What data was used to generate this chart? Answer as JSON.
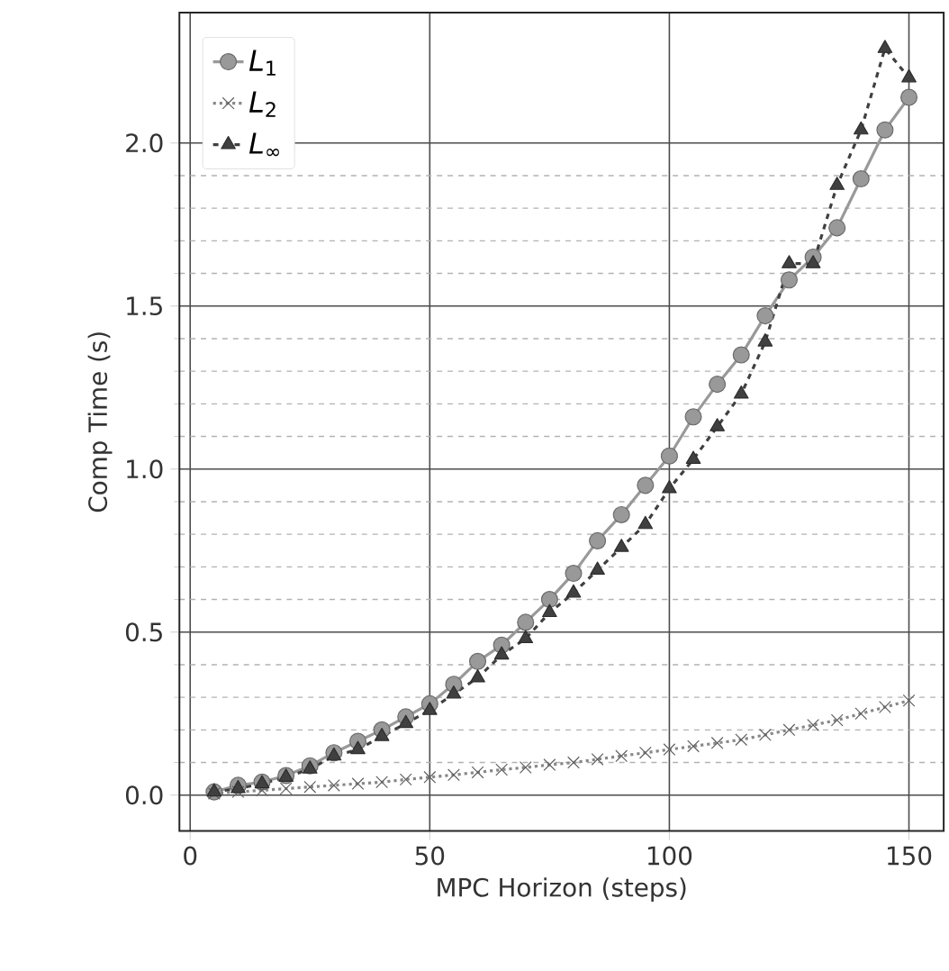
{
  "chart_data": {
    "type": "line",
    "xlabel": "MPC Horizon (steps)",
    "ylabel": "Comp Time (s)",
    "x": [
      5,
      10,
      15,
      20,
      25,
      30,
      35,
      40,
      45,
      50,
      55,
      60,
      65,
      70,
      75,
      80,
      85,
      90,
      95,
      100,
      105,
      110,
      115,
      120,
      125,
      130,
      135,
      140,
      145,
      150
    ],
    "series": [
      {
        "name": "*L*$_{1}$",
        "color": "#999999",
        "marker": "circle",
        "line_style": "solid",
        "values": [
          0.01,
          0.03,
          0.04,
          0.06,
          0.09,
          0.13,
          0.165,
          0.2,
          0.24,
          0.28,
          0.34,
          0.41,
          0.46,
          0.53,
          0.6,
          0.68,
          0.78,
          0.86,
          0.95,
          1.04,
          1.16,
          1.26,
          1.35,
          1.47,
          1.58,
          1.65,
          1.74,
          1.89,
          2.04,
          2.14
        ]
      },
      {
        "name": "*L*$_{2}$",
        "color": "#888888",
        "marker": "cross",
        "line_style": "dotted",
        "values": [
          0.005,
          0.01,
          0.015,
          0.02,
          0.025,
          0.03,
          0.035,
          0.04,
          0.048,
          0.055,
          0.062,
          0.07,
          0.078,
          0.085,
          0.093,
          0.1,
          0.11,
          0.12,
          0.13,
          0.14,
          0.15,
          0.16,
          0.17,
          0.185,
          0.2,
          0.215,
          0.23,
          0.25,
          0.27,
          0.29
        ]
      },
      {
        "name": "*L*$_{∞}$",
        "color": "#404040",
        "marker": "triangle",
        "line_style": "dashed",
        "values": [
          0.01,
          0.02,
          0.035,
          0.055,
          0.08,
          0.12,
          0.14,
          0.18,
          0.22,
          0.26,
          0.31,
          0.36,
          0.43,
          0.48,
          0.56,
          0.62,
          0.69,
          0.76,
          0.83,
          0.94,
          1.03,
          1.13,
          1.23,
          1.39,
          1.63,
          1.63,
          1.87,
          2.04,
          2.29,
          2.2
        ]
      }
    ],
    "xlim": [
      -2.25,
      157.25
    ],
    "ylim": [
      -0.11,
      2.4
    ],
    "xticks": [
      0,
      50,
      100,
      150
    ],
    "yticks": [
      {
        "value": 0,
        "label": "0.0"
      },
      {
        "value": 0.5,
        "label": "0.5"
      },
      {
        "value": 1.0,
        "label": "1.0"
      },
      {
        "value": 1.5,
        "label": "1.5"
      },
      {
        "value": 2.0,
        "label": "2.0"
      }
    ],
    "grid": true,
    "legend": "top left"
  }
}
